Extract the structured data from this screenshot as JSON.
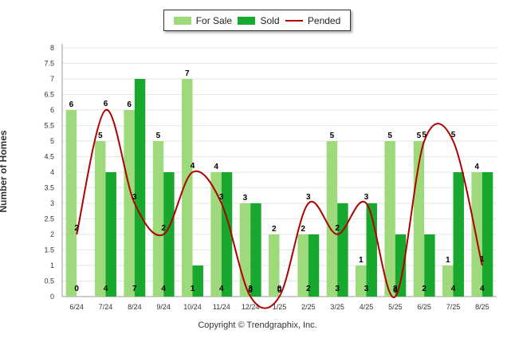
{
  "chart_data": {
    "type": "bar",
    "ylabel": "Number of Homes",
    "ylim": [
      0,
      8
    ],
    "yticks": [
      "0",
      "0.5",
      "1",
      "1.5",
      "2",
      "2.5",
      "3",
      "3.5",
      "4",
      "4.5",
      "5",
      "5.5",
      "6",
      "6.5",
      "7",
      "7.5",
      "8"
    ],
    "categories": [
      "6/24",
      "7/24",
      "8/24",
      "9/24",
      "10/24",
      "11/24",
      "12/24",
      "1/25",
      "2/25",
      "3/25",
      "4/25",
      "5/25",
      "6/25",
      "7/25",
      "8/25"
    ],
    "series": [
      {
        "name": "For Sale",
        "kind": "bar",
        "color": "#9ed97c",
        "values": [
          6,
          5,
          6,
          5,
          7,
          4,
          3,
          2,
          2,
          5,
          1,
          5,
          5,
          1,
          4
        ]
      },
      {
        "name": "Sold",
        "kind": "bar",
        "color": "#18a82e",
        "values": [
          0,
          4,
          7,
          4,
          1,
          4,
          3,
          0,
          2,
          3,
          3,
          2,
          2,
          4,
          4
        ]
      },
      {
        "name": "Pended",
        "kind": "line",
        "color": "#b00000",
        "values": [
          2,
          6,
          3,
          2,
          4,
          3,
          0,
          0,
          3,
          2,
          3,
          0,
          5,
          5,
          1
        ]
      }
    ],
    "legend_position": "top-center",
    "grid": true
  },
  "legend": {
    "for_sale": "For Sale",
    "sold": "Sold",
    "pended": "Pended"
  },
  "copyright": "Copyright © Trendgraphix, Inc."
}
